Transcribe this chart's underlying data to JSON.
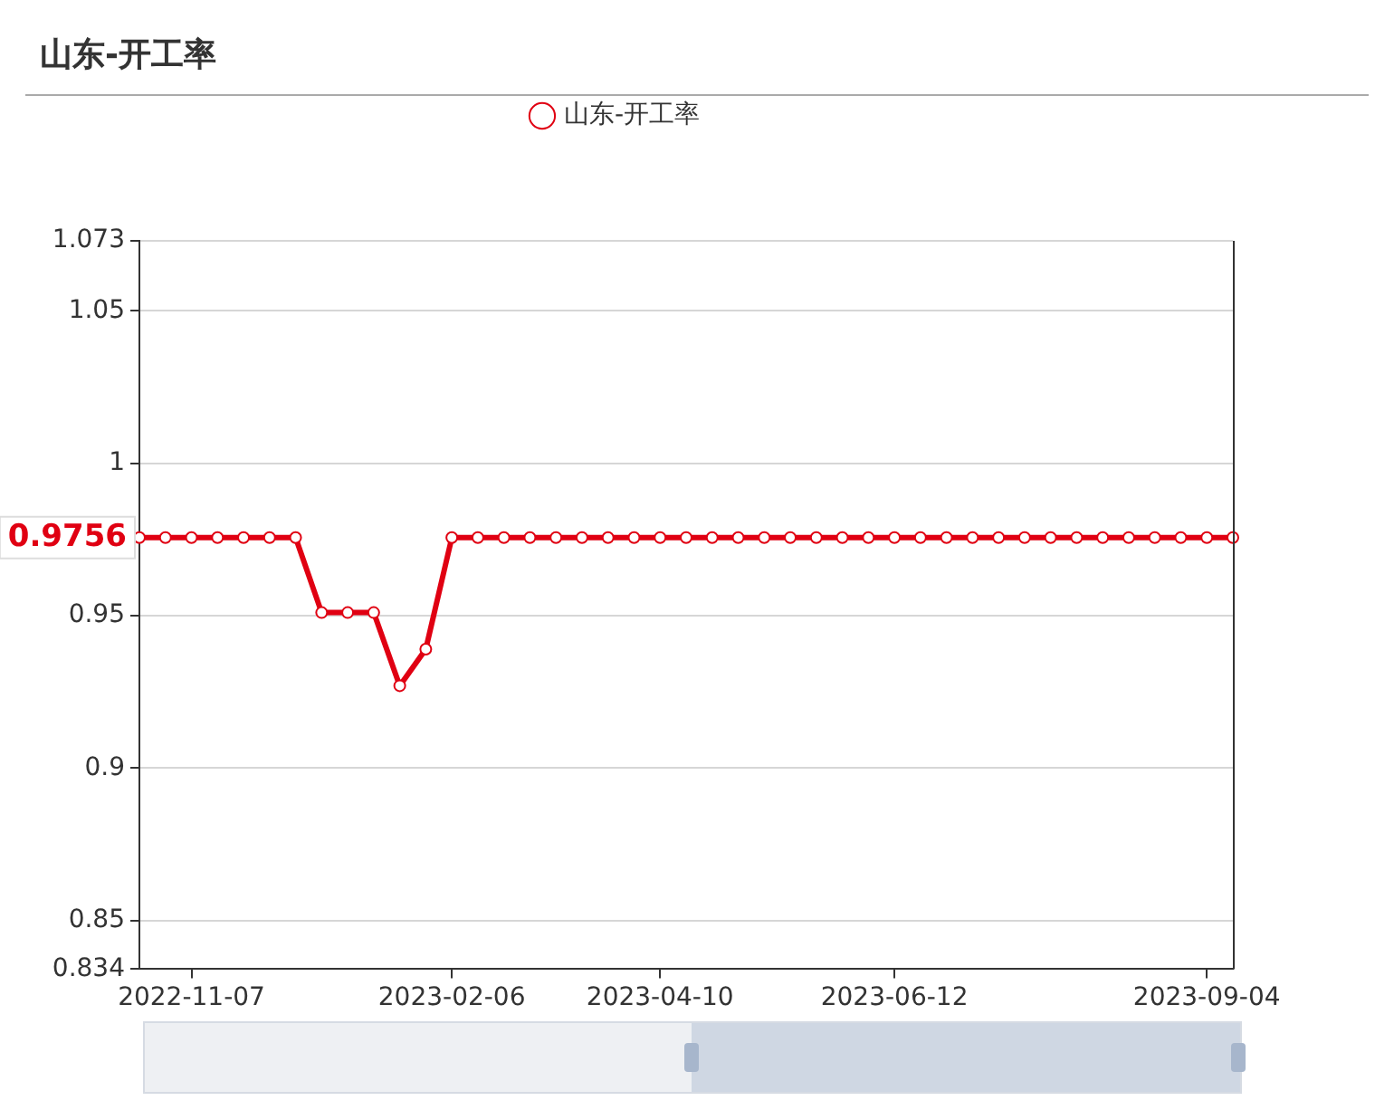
{
  "chart_data": {
    "type": "line",
    "title": "山东-开工率",
    "categories": [
      null,
      null,
      "2022-11-07",
      null,
      null,
      null,
      null,
      null,
      null,
      null,
      null,
      null,
      "2023-02-06",
      null,
      null,
      null,
      null,
      null,
      null,
      null,
      "2023-04-10",
      null,
      null,
      null,
      null,
      null,
      null,
      null,
      null,
      "2023-06-12",
      null,
      null,
      null,
      null,
      null,
      null,
      null,
      null,
      null,
      null,
      null,
      "2023-09-04",
      null
    ],
    "series": [
      {
        "name": "山东-开工率",
        "color": "#e00012",
        "values": [
          0.9756,
          0.9756,
          0.9756,
          0.9756,
          0.9756,
          0.9756,
          0.9756,
          0.951,
          0.951,
          0.951,
          0.927,
          0.939,
          0.9756,
          0.9756,
          0.9756,
          0.9756,
          0.9756,
          0.9756,
          0.9756,
          0.9756,
          0.9756,
          0.9756,
          0.9756,
          0.9756,
          0.9756,
          0.9756,
          0.9756,
          0.9756,
          0.9756,
          0.9756,
          0.9756,
          0.9756,
          0.9756,
          0.9756,
          0.9756,
          0.9756,
          0.9756,
          0.9756,
          0.9756,
          0.9756,
          0.9756,
          0.9756,
          0.9756
        ]
      }
    ],
    "ylim": [
      0.834,
      1.073
    ],
    "yticks": [
      0.834,
      0.85,
      0.9,
      0.95,
      1,
      1.05,
      1.073
    ],
    "grid": "y",
    "legend": "top",
    "marker": "circle",
    "line_style": "solid",
    "annotations": [
      "0.9756"
    ]
  }
}
